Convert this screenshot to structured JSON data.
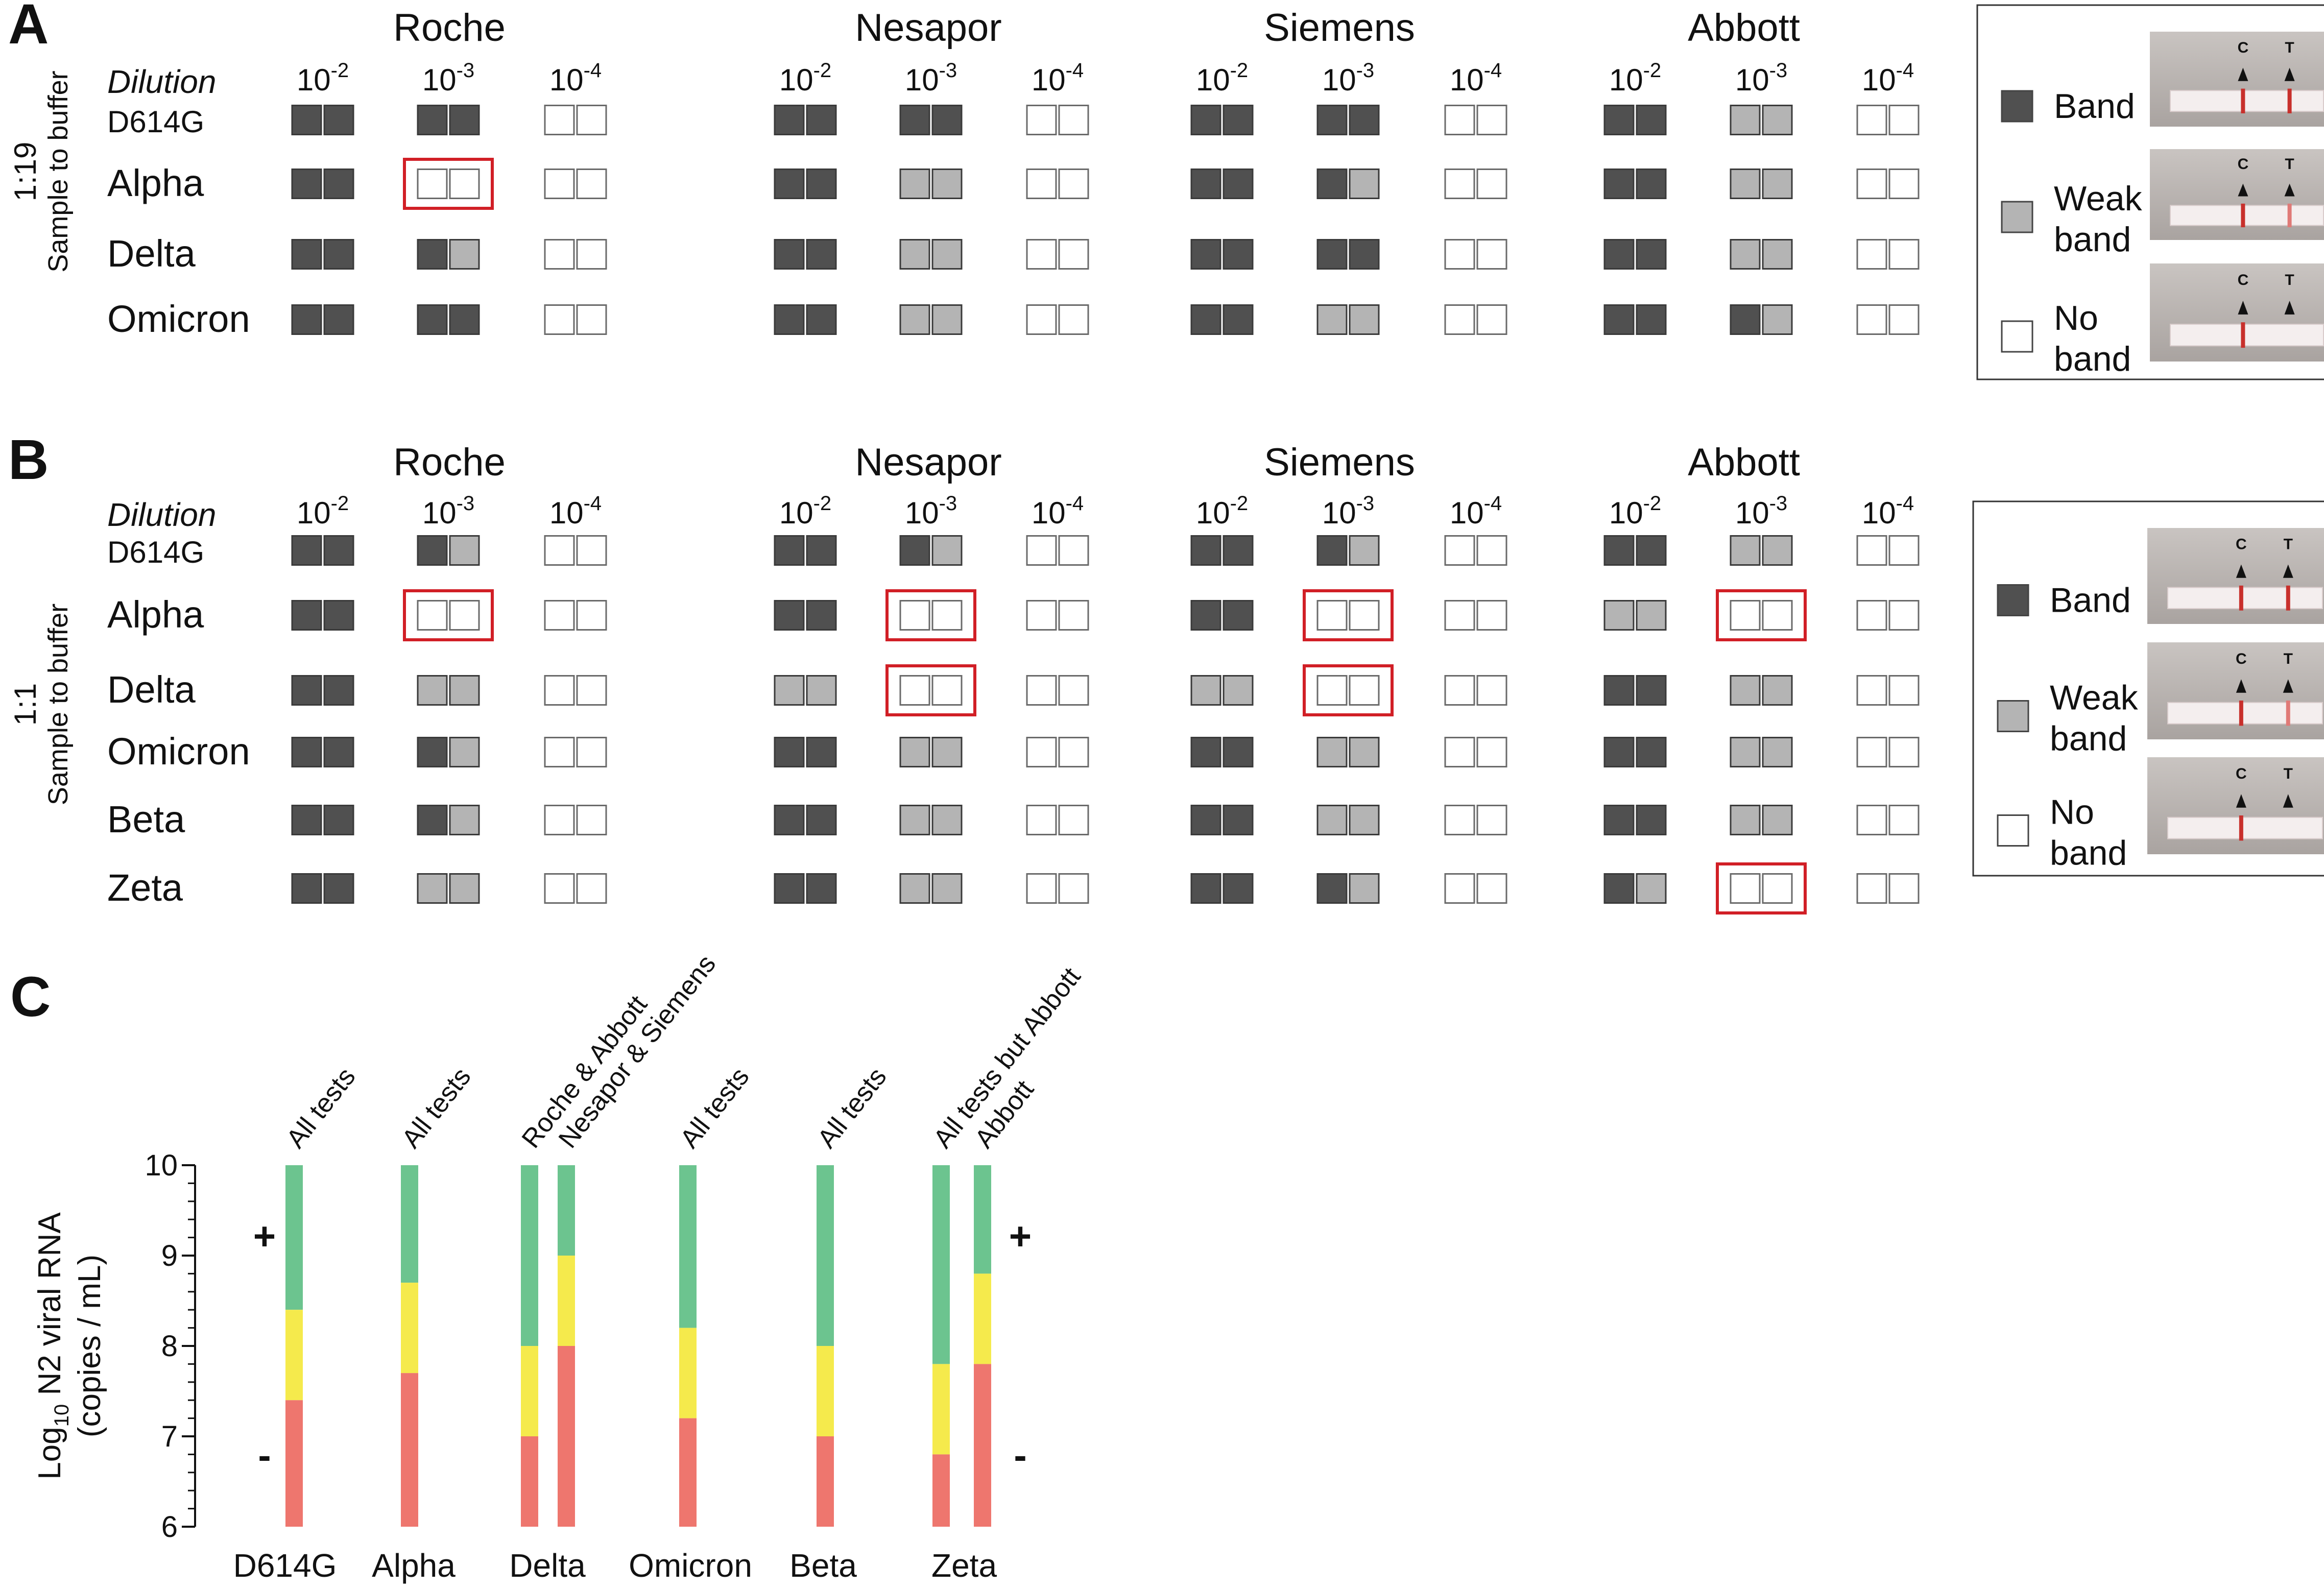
{
  "panels": [
    {
      "letter": "A",
      "ratio": "1:19",
      "ratio_caption": "Sample to buffer",
      "dilution_label": "Dilution",
      "tests": [
        "Roche",
        "Nesapor",
        "Siemens",
        "Abbott"
      ],
      "dilutions": [
        {
          "base": "10",
          "exp": "-2"
        },
        {
          "base": "10",
          "exp": "-3"
        },
        {
          "base": "10",
          "exp": "-4"
        }
      ],
      "variants": [
        "D614G",
        "Alpha",
        "Delta",
        "Omicron"
      ],
      "results": [
        [
          [
            "BB",
            "BB",
            "NN"
          ],
          [
            "BB",
            "BB",
            "NN"
          ],
          [
            "BB",
            "BB",
            "NN"
          ],
          [
            "BB",
            "WW",
            "NN"
          ]
        ],
        [
          [
            "BB",
            "NN",
            "NN"
          ],
          [
            "BB",
            "WW",
            "NN"
          ],
          [
            "BB",
            "BW",
            "NN"
          ],
          [
            "BB",
            "WW",
            "NN"
          ]
        ],
        [
          [
            "BB",
            "BW",
            "NN"
          ],
          [
            "BB",
            "WW",
            "NN"
          ],
          [
            "BB",
            "BB",
            "NN"
          ],
          [
            "BB",
            "WW",
            "NN"
          ]
        ],
        [
          [
            "BB",
            "BB",
            "NN"
          ],
          [
            "BB",
            "WW",
            "NN"
          ],
          [
            "BB",
            "WW",
            "NN"
          ],
          [
            "BB",
            "BW",
            "NN"
          ]
        ]
      ],
      "highlights": [
        {
          "variant": 1,
          "test": 0,
          "dilution": 1
        }
      ],
      "legend": [
        {
          "key": "band",
          "lines": [
            "Band"
          ]
        },
        {
          "key": "weak",
          "lines": [
            "Weak",
            "band"
          ]
        },
        {
          "key": "none",
          "lines": [
            "No",
            "band"
          ]
        }
      ]
    },
    {
      "letter": "B",
      "ratio": "1:1",
      "ratio_caption": "Sample to buffer",
      "dilution_label": "Dilution",
      "tests": [
        "Roche",
        "Nesapor",
        "Siemens",
        "Abbott"
      ],
      "dilutions": [
        {
          "base": "10",
          "exp": "-2"
        },
        {
          "base": "10",
          "exp": "-3"
        },
        {
          "base": "10",
          "exp": "-4"
        }
      ],
      "variants": [
        "D614G",
        "Alpha",
        "Delta",
        "Omicron",
        "Beta",
        "Zeta"
      ],
      "results": [
        [
          [
            "BB",
            "BW",
            "NN"
          ],
          [
            "BB",
            "BW",
            "NN"
          ],
          [
            "BB",
            "BW",
            "NN"
          ],
          [
            "BB",
            "WW",
            "NN"
          ]
        ],
        [
          [
            "BB",
            "NN",
            "NN"
          ],
          [
            "BB",
            "NN",
            "NN"
          ],
          [
            "BB",
            "NN",
            "NN"
          ],
          [
            "WW",
            "NN",
            "NN"
          ]
        ],
        [
          [
            "BB",
            "WW",
            "NN"
          ],
          [
            "WW",
            "NN",
            "NN"
          ],
          [
            "WW",
            "NN",
            "NN"
          ],
          [
            "BB",
            "WW",
            "NN"
          ]
        ],
        [
          [
            "BB",
            "BW",
            "NN"
          ],
          [
            "BB",
            "WW",
            "NN"
          ],
          [
            "BB",
            "WW",
            "NN"
          ],
          [
            "BB",
            "WW",
            "NN"
          ]
        ],
        [
          [
            "BB",
            "BW",
            "NN"
          ],
          [
            "BB",
            "WW",
            "NN"
          ],
          [
            "BB",
            "WW",
            "NN"
          ],
          [
            "BB",
            "WW",
            "NN"
          ]
        ],
        [
          [
            "BB",
            "WW",
            "NN"
          ],
          [
            "BB",
            "WW",
            "NN"
          ],
          [
            "BB",
            "BW",
            "NN"
          ],
          [
            "BW",
            "NN",
            "NN"
          ]
        ]
      ],
      "highlights": [
        {
          "variant": 1,
          "test": 0,
          "dilution": 1
        },
        {
          "variant": 1,
          "test": 1,
          "dilution": 1
        },
        {
          "variant": 1,
          "test": 2,
          "dilution": 1
        },
        {
          "variant": 1,
          "test": 3,
          "dilution": 1
        },
        {
          "variant": 2,
          "test": 1,
          "dilution": 1
        },
        {
          "variant": 2,
          "test": 2,
          "dilution": 1
        },
        {
          "variant": 5,
          "test": 3,
          "dilution": 1
        }
      ],
      "legend": [
        {
          "key": "band",
          "lines": [
            "Band"
          ]
        },
        {
          "key": "weak",
          "lines": [
            "Weak",
            "band"
          ]
        },
        {
          "key": "none",
          "lines": [
            "No",
            "band"
          ]
        }
      ]
    }
  ],
  "strip_image": {
    "control_label": "C",
    "test_label": "T"
  },
  "colors": {
    "band": "#505050",
    "weak": "#b4b4b4",
    "none": "#ffffff",
    "highlight": "#d11f26",
    "positive_region": "#6cc48f",
    "uncertain_region": "#f5ea4c",
    "negative_region": "#ee766e",
    "plus_sign": "#1a9a3a",
    "minus_sign": "#d11f26"
  },
  "chart_data": {
    "type": "bar",
    "panel_letter": "C",
    "ylabel": "Log10 N2 viral RNA (copies / mL)",
    "ylabel_parts": {
      "pre": "Log",
      "sub": "10",
      "post": " N2 viral RNA",
      "line2": "(copies / mL)"
    },
    "ylim": [
      6,
      10
    ],
    "yticks": [
      "6",
      "7",
      "8",
      "9",
      "10"
    ],
    "positive_label": "+",
    "negative_label": "-",
    "categories": [
      "D614G",
      "Alpha",
      "Delta",
      "Omicron",
      "Beta",
      "Zeta"
    ],
    "bars": [
      {
        "category": "D614G",
        "label": "All tests",
        "negative_max": 7.4,
        "weak_max": 8.4
      },
      {
        "category": "Alpha",
        "label": "All tests",
        "negative_max": 7.7,
        "weak_max": 8.7
      },
      {
        "category": "Delta",
        "label": "Roche & Abbott",
        "negative_max": 7.0,
        "weak_max": 8.0
      },
      {
        "category": "Delta",
        "label": "Nesapor & Siemens",
        "negative_max": 8.0,
        "weak_max": 9.0
      },
      {
        "category": "Omicron",
        "label": "All tests",
        "negative_max": 7.2,
        "weak_max": 8.2
      },
      {
        "category": "Beta",
        "label": "All tests",
        "negative_max": 7.0,
        "weak_max": 8.0
      },
      {
        "category": "Zeta",
        "label": "All tests but Abbott",
        "negative_max": 6.8,
        "weak_max": 7.8
      },
      {
        "category": "Zeta",
        "label": "Abbott",
        "negative_max": 7.8,
        "weak_max": 8.8
      }
    ]
  }
}
